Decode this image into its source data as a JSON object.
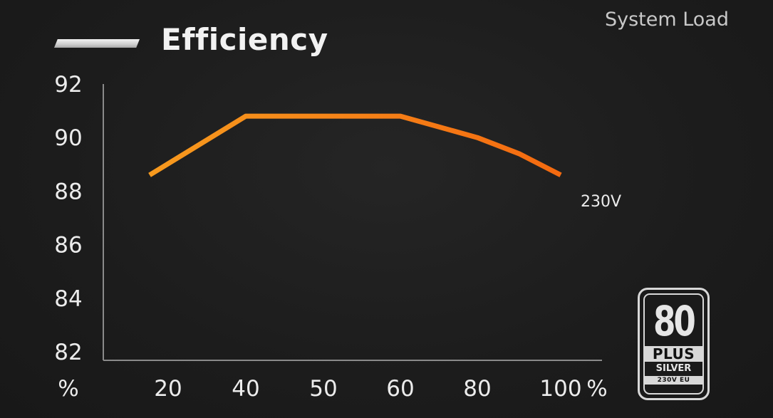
{
  "chart_data": {
    "type": "line",
    "title": "Efficiency",
    "legend_label": "System Load",
    "y_unit": "%",
    "x_unit": "%",
    "categories": [
      "20",
      "40",
      "50",
      "60",
      "80",
      "100"
    ],
    "y_ticks": [
      "82",
      "84",
      "86",
      "88",
      "90",
      "92"
    ],
    "ylim": [
      82,
      92
    ],
    "series": [
      {
        "name": "230V",
        "x": [
          20,
          40,
          50,
          60,
          80,
          90,
          100
        ],
        "values": [
          88.6,
          90.8,
          90.8,
          90.8,
          90.0,
          89.4,
          88.6
        ]
      }
    ],
    "grid": false,
    "colors": {
      "line_start": "#f79a1e",
      "line_end": "#f46a10",
      "background": "#1d1d1d",
      "text": "#ececec"
    }
  },
  "badge": {
    "number": "80",
    "plus": "PLUS",
    "tier": "SILVER",
    "region": "230V EU"
  }
}
